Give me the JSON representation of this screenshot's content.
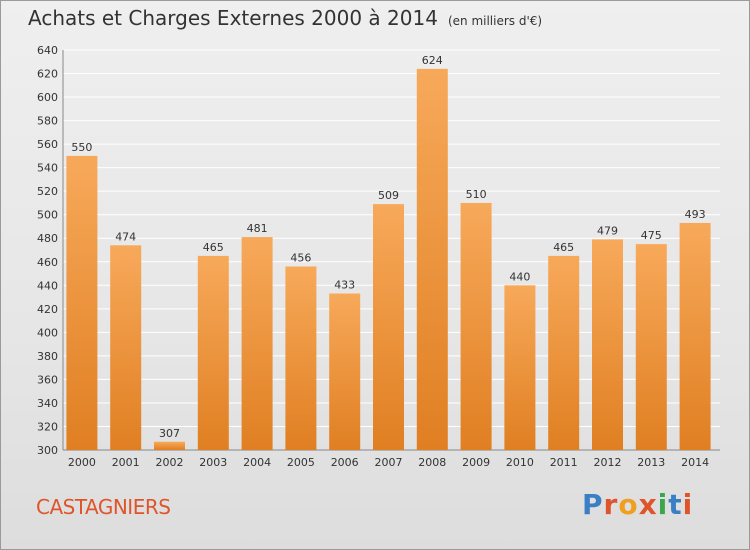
{
  "header": {
    "title": "Achats et Charges Externes 2000 à 2014",
    "subtitle": "(en milliers d'€)"
  },
  "footer": {
    "commune": "CASTAGNIERS",
    "logo_letters": [
      "P",
      "r",
      "o",
      "x",
      "i",
      "t",
      "i"
    ],
    "logo_colors": [
      "#3a7fc4",
      "#e0542b",
      "#f0a020",
      "#e0542b",
      "#3aa84a",
      "#3a7fc4",
      "#e0542b"
    ]
  },
  "colors": {
    "bar_light": "#f7a95a",
    "bar_dark": "#e07f22",
    "grid": "#ffffff"
  },
  "chart_data": {
    "type": "bar",
    "title": "Achats et Charges Externes 2000 à 2014",
    "categories": [
      "2000",
      "2001",
      "2002",
      "2003",
      "2004",
      "2005",
      "2006",
      "2007",
      "2008",
      "2009",
      "2010",
      "2011",
      "2012",
      "2013",
      "2014"
    ],
    "values": [
      550,
      474,
      307,
      465,
      481,
      456,
      433,
      509,
      624,
      510,
      440,
      465,
      479,
      475,
      493
    ],
    "ylim": [
      300,
      640
    ],
    "yticks": [
      300,
      320,
      340,
      360,
      380,
      400,
      420,
      440,
      460,
      480,
      500,
      520,
      540,
      560,
      580,
      600,
      620,
      640
    ],
    "grid": true,
    "xlabel": "",
    "ylabel": ""
  }
}
